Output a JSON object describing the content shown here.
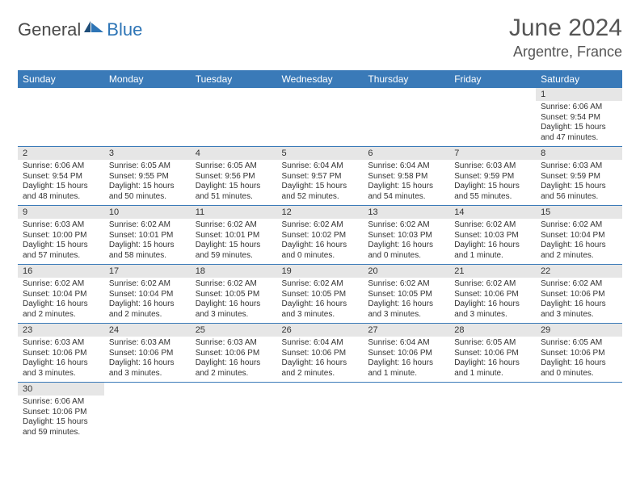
{
  "brand": {
    "part1": "General",
    "part2": "Blue"
  },
  "title": "June 2024",
  "location": "Argentre, France",
  "colors": {
    "header_bg": "#3a7ab8",
    "header_text": "#ffffff",
    "daynum_bg": "#e6e6e6",
    "row_divider": "#3a7ab8",
    "title_color": "#555555",
    "logo_blue": "#2e75b6"
  },
  "weekdays": [
    "Sunday",
    "Monday",
    "Tuesday",
    "Wednesday",
    "Thursday",
    "Friday",
    "Saturday"
  ],
  "weeks": [
    [
      null,
      null,
      null,
      null,
      null,
      null,
      {
        "d": "1",
        "sr": "Sunrise: 6:06 AM",
        "ss": "Sunset: 9:54 PM",
        "dl1": "Daylight: 15 hours",
        "dl2": "and 47 minutes."
      }
    ],
    [
      {
        "d": "2",
        "sr": "Sunrise: 6:06 AM",
        "ss": "Sunset: 9:54 PM",
        "dl1": "Daylight: 15 hours",
        "dl2": "and 48 minutes."
      },
      {
        "d": "3",
        "sr": "Sunrise: 6:05 AM",
        "ss": "Sunset: 9:55 PM",
        "dl1": "Daylight: 15 hours",
        "dl2": "and 50 minutes."
      },
      {
        "d": "4",
        "sr": "Sunrise: 6:05 AM",
        "ss": "Sunset: 9:56 PM",
        "dl1": "Daylight: 15 hours",
        "dl2": "and 51 minutes."
      },
      {
        "d": "5",
        "sr": "Sunrise: 6:04 AM",
        "ss": "Sunset: 9:57 PM",
        "dl1": "Daylight: 15 hours",
        "dl2": "and 52 minutes."
      },
      {
        "d": "6",
        "sr": "Sunrise: 6:04 AM",
        "ss": "Sunset: 9:58 PM",
        "dl1": "Daylight: 15 hours",
        "dl2": "and 54 minutes."
      },
      {
        "d": "7",
        "sr": "Sunrise: 6:03 AM",
        "ss": "Sunset: 9:59 PM",
        "dl1": "Daylight: 15 hours",
        "dl2": "and 55 minutes."
      },
      {
        "d": "8",
        "sr": "Sunrise: 6:03 AM",
        "ss": "Sunset: 9:59 PM",
        "dl1": "Daylight: 15 hours",
        "dl2": "and 56 minutes."
      }
    ],
    [
      {
        "d": "9",
        "sr": "Sunrise: 6:03 AM",
        "ss": "Sunset: 10:00 PM",
        "dl1": "Daylight: 15 hours",
        "dl2": "and 57 minutes."
      },
      {
        "d": "10",
        "sr": "Sunrise: 6:02 AM",
        "ss": "Sunset: 10:01 PM",
        "dl1": "Daylight: 15 hours",
        "dl2": "and 58 minutes."
      },
      {
        "d": "11",
        "sr": "Sunrise: 6:02 AM",
        "ss": "Sunset: 10:01 PM",
        "dl1": "Daylight: 15 hours",
        "dl2": "and 59 minutes."
      },
      {
        "d": "12",
        "sr": "Sunrise: 6:02 AM",
        "ss": "Sunset: 10:02 PM",
        "dl1": "Daylight: 16 hours",
        "dl2": "and 0 minutes."
      },
      {
        "d": "13",
        "sr": "Sunrise: 6:02 AM",
        "ss": "Sunset: 10:03 PM",
        "dl1": "Daylight: 16 hours",
        "dl2": "and 0 minutes."
      },
      {
        "d": "14",
        "sr": "Sunrise: 6:02 AM",
        "ss": "Sunset: 10:03 PM",
        "dl1": "Daylight: 16 hours",
        "dl2": "and 1 minute."
      },
      {
        "d": "15",
        "sr": "Sunrise: 6:02 AM",
        "ss": "Sunset: 10:04 PM",
        "dl1": "Daylight: 16 hours",
        "dl2": "and 2 minutes."
      }
    ],
    [
      {
        "d": "16",
        "sr": "Sunrise: 6:02 AM",
        "ss": "Sunset: 10:04 PM",
        "dl1": "Daylight: 16 hours",
        "dl2": "and 2 minutes."
      },
      {
        "d": "17",
        "sr": "Sunrise: 6:02 AM",
        "ss": "Sunset: 10:04 PM",
        "dl1": "Daylight: 16 hours",
        "dl2": "and 2 minutes."
      },
      {
        "d": "18",
        "sr": "Sunrise: 6:02 AM",
        "ss": "Sunset: 10:05 PM",
        "dl1": "Daylight: 16 hours",
        "dl2": "and 3 minutes."
      },
      {
        "d": "19",
        "sr": "Sunrise: 6:02 AM",
        "ss": "Sunset: 10:05 PM",
        "dl1": "Daylight: 16 hours",
        "dl2": "and 3 minutes."
      },
      {
        "d": "20",
        "sr": "Sunrise: 6:02 AM",
        "ss": "Sunset: 10:05 PM",
        "dl1": "Daylight: 16 hours",
        "dl2": "and 3 minutes."
      },
      {
        "d": "21",
        "sr": "Sunrise: 6:02 AM",
        "ss": "Sunset: 10:06 PM",
        "dl1": "Daylight: 16 hours",
        "dl2": "and 3 minutes."
      },
      {
        "d": "22",
        "sr": "Sunrise: 6:02 AM",
        "ss": "Sunset: 10:06 PM",
        "dl1": "Daylight: 16 hours",
        "dl2": "and 3 minutes."
      }
    ],
    [
      {
        "d": "23",
        "sr": "Sunrise: 6:03 AM",
        "ss": "Sunset: 10:06 PM",
        "dl1": "Daylight: 16 hours",
        "dl2": "and 3 minutes."
      },
      {
        "d": "24",
        "sr": "Sunrise: 6:03 AM",
        "ss": "Sunset: 10:06 PM",
        "dl1": "Daylight: 16 hours",
        "dl2": "and 3 minutes."
      },
      {
        "d": "25",
        "sr": "Sunrise: 6:03 AM",
        "ss": "Sunset: 10:06 PM",
        "dl1": "Daylight: 16 hours",
        "dl2": "and 2 minutes."
      },
      {
        "d": "26",
        "sr": "Sunrise: 6:04 AM",
        "ss": "Sunset: 10:06 PM",
        "dl1": "Daylight: 16 hours",
        "dl2": "and 2 minutes."
      },
      {
        "d": "27",
        "sr": "Sunrise: 6:04 AM",
        "ss": "Sunset: 10:06 PM",
        "dl1": "Daylight: 16 hours",
        "dl2": "and 1 minute."
      },
      {
        "d": "28",
        "sr": "Sunrise: 6:05 AM",
        "ss": "Sunset: 10:06 PM",
        "dl1": "Daylight: 16 hours",
        "dl2": "and 1 minute."
      },
      {
        "d": "29",
        "sr": "Sunrise: 6:05 AM",
        "ss": "Sunset: 10:06 PM",
        "dl1": "Daylight: 16 hours",
        "dl2": "and 0 minutes."
      }
    ],
    [
      {
        "d": "30",
        "sr": "Sunrise: 6:06 AM",
        "ss": "Sunset: 10:06 PM",
        "dl1": "Daylight: 15 hours",
        "dl2": "and 59 minutes."
      },
      null,
      null,
      null,
      null,
      null,
      null
    ]
  ]
}
